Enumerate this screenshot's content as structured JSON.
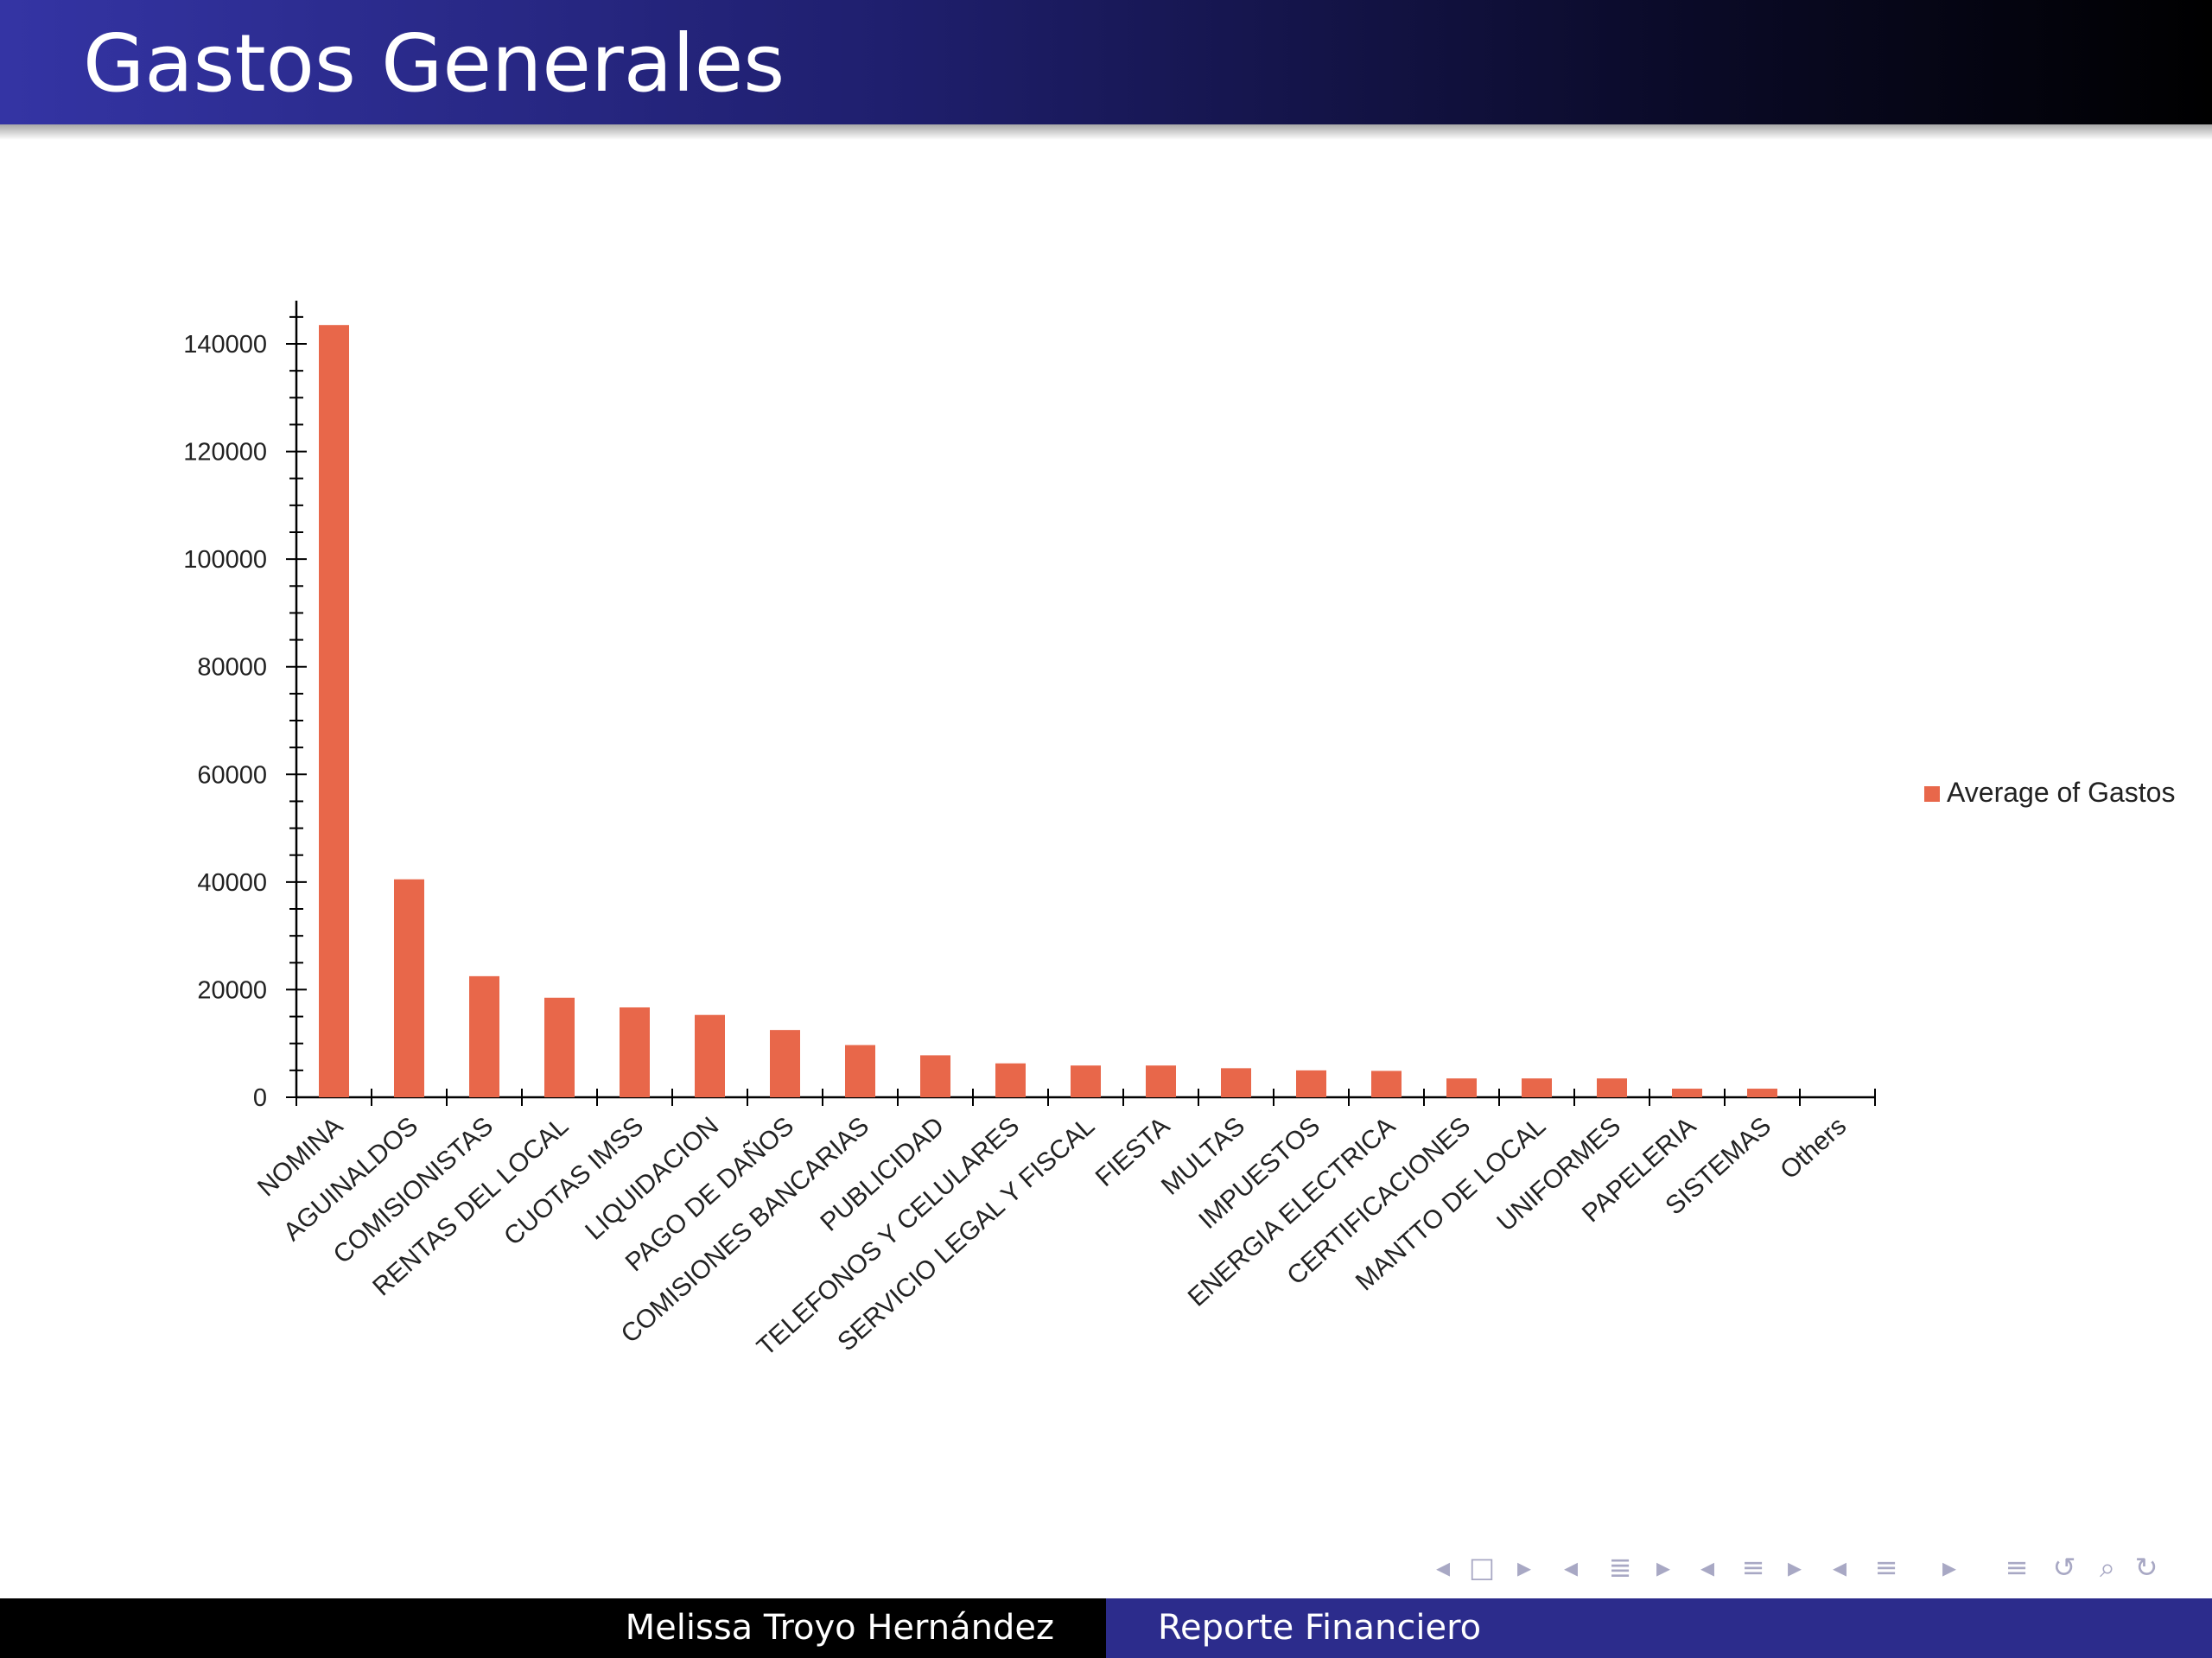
{
  "slide": {
    "title": "Gastos Generales"
  },
  "footer": {
    "author": "Melissa Troyo Hernández",
    "title": "Reporte Financiero"
  },
  "colors": {
    "bar": "#e8674a",
    "header_start": "#3434a4",
    "header_end": "#000000",
    "footer_right": "#2c2c8c"
  },
  "nav_icons": [
    "triangle-left-icon",
    "frame-icon",
    "triangle-right-icon",
    "triangle-left-icon",
    "subsection-icon",
    "triangle-right-icon",
    "triangle-left-icon",
    "section-icon",
    "triangle-right-icon",
    "triangle-left-icon",
    "section-icon",
    "triangle-right-icon",
    "outline-icon",
    "back-icon",
    "search-icon",
    "forward-icon"
  ],
  "chart_data": {
    "type": "bar",
    "title": "",
    "xlabel": "",
    "ylabel": "",
    "ylim": [
      0,
      150000
    ],
    "yticks": [
      0,
      20000,
      40000,
      60000,
      80000,
      100000,
      120000,
      140000
    ],
    "ytick_labels": [
      "0",
      "20000",
      "40000",
      "60000",
      "80000",
      "100000",
      "120000",
      "140000"
    ],
    "grid": false,
    "legend_position": "right",
    "categories": [
      "NOMINA",
      "AGUINALDOS",
      "COMISIONISTAS",
      "RENTAS DEL LOCAL",
      "CUOTAS IMSS",
      "LIQUIDACION",
      "PAGO DE DAÑOS",
      "COMISIONES BANCARIAS",
      "PUBLICIDAD",
      "TELEFONOS Y CELULARES",
      "SERVICIO LEGAL Y FISCAL",
      "FIESTA",
      "MULTAS",
      "IMPUESTOS",
      "ENERGIA ELECTRICA",
      "CERTIFICACIONES",
      "MANTTO DE LOCAL",
      "UNIFORMES",
      "PAPELERIA",
      "SISTEMAS",
      "Others"
    ],
    "series": [
      {
        "name": "Average of Gastos",
        "color": "#e8674a",
        "values": [
          143500,
          40500,
          22500,
          18500,
          16700,
          15300,
          12500,
          9700,
          7800,
          6300,
          5900,
          5900,
          5400,
          5000,
          4900,
          3500,
          3500,
          3500,
          1600,
          1600,
          0
        ]
      }
    ]
  }
}
